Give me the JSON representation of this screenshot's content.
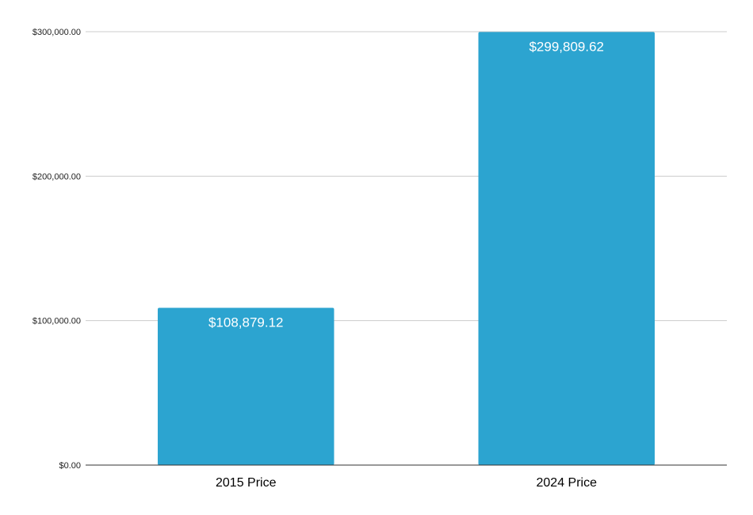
{
  "colors": {
    "bar": "#2ca4d0",
    "grid": "#cccccc",
    "axis": "#333333",
    "background": "#ffffff"
  },
  "chart_data": {
    "type": "bar",
    "title": "",
    "xlabel": "",
    "ylabel": "",
    "categories": [
      "2015 Price",
      "2024 Price"
    ],
    "values": [
      108879.12,
      299809.62
    ],
    "data_labels": [
      "$108,879.12",
      "$299,809.62"
    ],
    "ylim": [
      0,
      300000
    ],
    "yticks": [
      0,
      100000,
      200000,
      300000
    ],
    "ytick_labels": [
      "$0.00",
      "$100,000.00",
      "$200,000.00",
      "$300,000.00"
    ],
    "grid": true,
    "legend": "none"
  }
}
